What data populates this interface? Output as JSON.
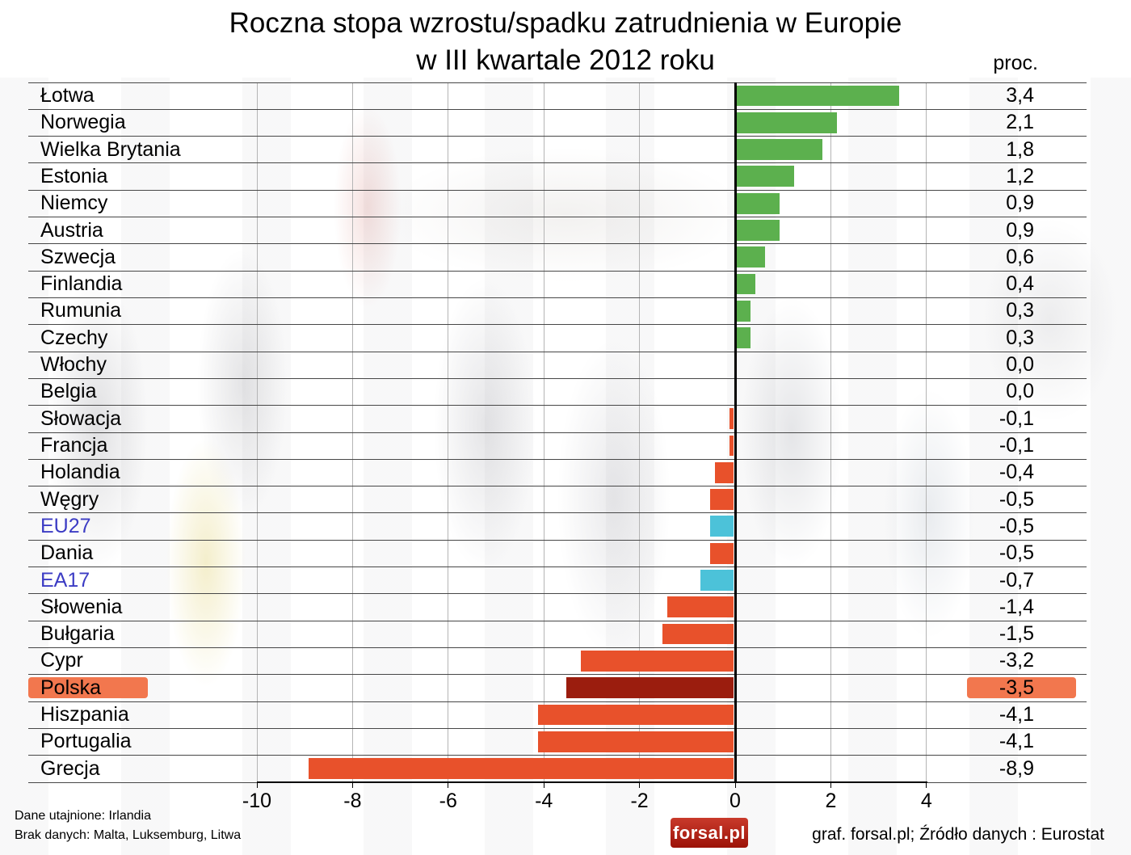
{
  "title": {
    "line1": "Roczna stopa wzrostu/spadku zatrudnienia w Europie",
    "line2": "w III kwartale 2012 roku",
    "unit_label": "proc."
  },
  "chart_data": {
    "type": "bar",
    "orientation": "horizontal",
    "title": "Roczna stopa wzrostu/spadku zatrudnienia w Europie w III kwartale 2012 roku",
    "unit": "proc.",
    "xlim": [
      -10,
      4
    ],
    "x_ticks": [
      -10,
      -8,
      -6,
      -4,
      -2,
      0,
      2,
      4
    ],
    "x_tick_labels": [
      "-10",
      "-8",
      "-6",
      "-4",
      "-2",
      "0",
      "2",
      "4"
    ],
    "grid": true,
    "rows": [
      {
        "name": "Łotwa",
        "value": 3.4,
        "label": "3,4",
        "style": "positive"
      },
      {
        "name": "Norwegia",
        "value": 2.1,
        "label": "2,1",
        "style": "positive"
      },
      {
        "name": "Wielka Brytania",
        "value": 1.8,
        "label": "1,8",
        "style": "positive"
      },
      {
        "name": "Estonia",
        "value": 1.2,
        "label": "1,2",
        "style": "positive"
      },
      {
        "name": "Niemcy",
        "value": 0.9,
        "label": "0,9",
        "style": "positive"
      },
      {
        "name": "Austria",
        "value": 0.9,
        "label": "0,9",
        "style": "positive"
      },
      {
        "name": "Szwecja",
        "value": 0.6,
        "label": "0,6",
        "style": "positive"
      },
      {
        "name": "Finlandia",
        "value": 0.4,
        "label": "0,4",
        "style": "positive"
      },
      {
        "name": "Rumunia",
        "value": 0.3,
        "label": "0,3",
        "style": "positive"
      },
      {
        "name": "Czechy",
        "value": 0.3,
        "label": "0,3",
        "style": "positive"
      },
      {
        "name": "Włochy",
        "value": 0.0,
        "label": "0,0",
        "style": "none"
      },
      {
        "name": "Belgia",
        "value": 0.0,
        "label": "0,0",
        "style": "none"
      },
      {
        "name": "Słowacja",
        "value": -0.1,
        "label": "-0,1",
        "style": "negative"
      },
      {
        "name": "Francja",
        "value": -0.1,
        "label": "-0,1",
        "style": "negative"
      },
      {
        "name": "Holandia",
        "value": -0.4,
        "label": "-0,4",
        "style": "negative"
      },
      {
        "name": "Węgry",
        "value": -0.5,
        "label": "-0,5",
        "style": "negative"
      },
      {
        "name": "EU27",
        "value": -0.5,
        "label": "-0,5",
        "style": "eu",
        "label_style": "eu"
      },
      {
        "name": "Dania",
        "value": -0.5,
        "label": "-0,5",
        "style": "negative"
      },
      {
        "name": "EA17",
        "value": -0.7,
        "label": "-0,7",
        "style": "eu",
        "label_style": "eu"
      },
      {
        "name": "Słowenia",
        "value": -1.4,
        "label": "-1,4",
        "style": "negative"
      },
      {
        "name": "Bułgaria",
        "value": -1.5,
        "label": "-1,5",
        "style": "negative"
      },
      {
        "name": "Cypr",
        "value": -3.2,
        "label": "-3,2",
        "style": "negative"
      },
      {
        "name": "Polska",
        "value": -3.5,
        "label": "-3,5",
        "style": "focus",
        "highlight": true
      },
      {
        "name": "Hiszpania",
        "value": -4.1,
        "label": "-4,1",
        "style": "negative"
      },
      {
        "name": "Portugalia",
        "value": -4.1,
        "label": "-4,1",
        "style": "negative"
      },
      {
        "name": "Grecja",
        "value": -8.9,
        "label": "-8,9",
        "style": "negative"
      }
    ]
  },
  "footer": {
    "note1": "Dane utajnione: Irlandia",
    "note2": "Brak danych: Malta, Luksemburg, Litwa",
    "logo_text": "forsal.pl",
    "credit": "graf. forsal.pl; Źródło danych : Eurostat"
  },
  "colors": {
    "positive": "#5cb04e",
    "negative": "#e8512b",
    "eu": "#4cc2d9",
    "focus": "#9b1d0e",
    "highlight": "#f2774e",
    "eu_label": "#3c3cc4",
    "logo": "#9c1208"
  }
}
